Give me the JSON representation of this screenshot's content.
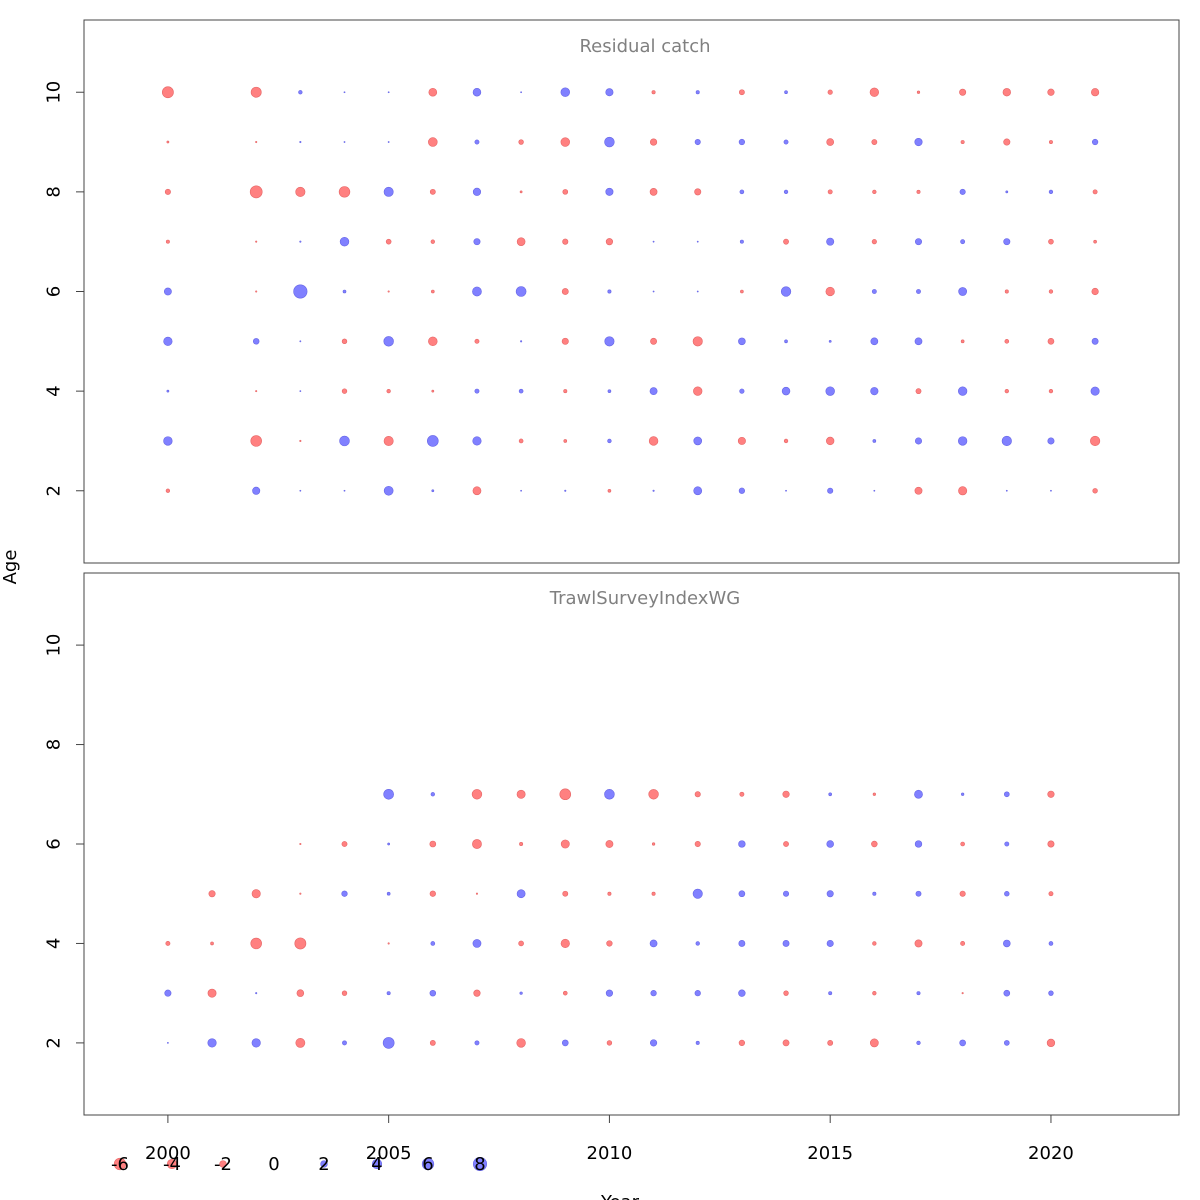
{
  "chart_data": {
    "type": "scatter",
    "subtype": "bubble",
    "xlabel": "Year",
    "ylabel": "Age",
    "x_ticks": [
      2000,
      2005,
      2010,
      2015,
      2020
    ],
    "y_ticks": [
      2,
      4,
      6,
      8,
      10
    ],
    "xlim": [
      1998.1,
      2022.9
    ],
    "ylim": [
      0.55,
      11.45
    ],
    "colors": {
      "positive": "#8080ff",
      "negative": "#ff8080",
      "positive_stroke": "#6666e6",
      "negative_stroke": "#e66666"
    },
    "legend": {
      "placement": "bottom-left",
      "values": [
        -6,
        -4,
        -2,
        0,
        2,
        4,
        6,
        8
      ],
      "labels": [
        "-6",
        "-4",
        "-2",
        "0",
        "2",
        "4",
        "6",
        "8"
      ]
    },
    "panels": [
      {
        "title": "Residual catch",
        "years": [
          2000,
          2002,
          2003,
          2004,
          2005,
          2006,
          2007,
          2008,
          2009,
          2010,
          2011,
          2012,
          2013,
          2014,
          2015,
          2016,
          2017,
          2018,
          2019,
          2020,
          2021
        ],
        "ages": [
          2,
          3,
          4,
          5,
          6,
          7,
          8,
          9,
          10
        ],
        "residuals": [
          [
            -0.6,
            3.3,
            0.2,
            3.2,
            2.3,
            -0.5,
            -1.3,
            -0.2,
            -5.5
          ],
          [
            2.4,
            -5.2,
            -0.1,
            1.5,
            -0.1,
            -0.1,
            -6.4,
            -0.1,
            -4.6
          ],
          [
            0.0,
            -0.1,
            0.0,
            0.0,
            8.0,
            0.1,
            -3.9,
            0.1,
            0.6
          ],
          [
            0.0,
            4.3,
            -1.0,
            -1.0,
            0.4,
            3.4,
            -5.1,
            0.0,
            0.0
          ],
          [
            3.6,
            -3.8,
            -0.6,
            4.2,
            -0.1,
            -1.1,
            3.8,
            0.0,
            0.0
          ],
          [
            0.2,
            5.3,
            -0.2,
            -3.4,
            -0.4,
            -0.6,
            -1.2,
            -3.5,
            -2.8
          ],
          [
            -2.9,
            3.2,
            0.8,
            -0.8,
            3.6,
            1.8,
            2.5,
            0.8,
            2.7
          ],
          [
            0.0,
            -0.7,
            0.7,
            0.1,
            4.4,
            -2.8,
            -0.2,
            -1.0,
            0.0
          ],
          [
            0.1,
            -0.4,
            -0.5,
            -1.8,
            -1.7,
            -1.3,
            -1.1,
            -3.4,
            3.4
          ],
          [
            -0.4,
            0.6,
            0.4,
            3.9,
            0.5,
            -1.9,
            2.4,
            4.2,
            2.4
          ],
          [
            0.1,
            -3.4,
            2.3,
            -1.7,
            0.0,
            0.0,
            -2.2,
            -1.9,
            -0.5
          ],
          [
            2.9,
            2.8,
            -3.3,
            -3.9,
            0.0,
            0.0,
            -1.8,
            1.3,
            0.5
          ],
          [
            1.4,
            -2.4,
            0.9,
            2.1,
            -0.4,
            0.5,
            0.7,
            1.4,
            -1.2
          ],
          [
            0.0,
            -0.6,
            2.7,
            0.4,
            4.1,
            -1.2,
            0.6,
            0.8,
            0.4
          ],
          [
            1.3,
            -2.6,
            3.4,
            0.2,
            -3.3,
            2.4,
            -0.8,
            -2.2,
            -0.9
          ],
          [
            0.0,
            0.4,
            2.5,
            2.2,
            0.8,
            -0.9,
            -0.6,
            -1.2,
            -3.3
          ],
          [
            -2.3,
            1.8,
            -1.2,
            2.2,
            0.8,
            1.8,
            -0.5,
            2.5,
            -0.3
          ],
          [
            -3.1,
            3.3,
            3.3,
            -0.4,
            2.9,
            0.8,
            1.3,
            -0.5,
            -1.8
          ],
          [
            0.0,
            4.0,
            -0.6,
            -0.7,
            -0.5,
            1.8,
            0.2,
            -1.8,
            -2.6
          ],
          [
            0.0,
            1.8,
            -0.6,
            -1.6,
            -0.6,
            -1.1,
            0.6,
            -0.5,
            -1.9
          ],
          [
            -1.0,
            -4.0,
            3.1,
            1.7,
            -1.9,
            -0.4,
            -0.8,
            1.4,
            -2.5
          ]
        ]
      },
      {
        "title": "TrawlSurveyIndexWG",
        "years": [
          2000,
          2001,
          2002,
          2003,
          2004,
          2005,
          2006,
          2007,
          2008,
          2009,
          2010,
          2011,
          2012,
          2013,
          2014,
          2015,
          2016,
          2017,
          2018,
          2019,
          2020
        ],
        "ages": [
          2,
          3,
          4,
          5,
          6,
          7
        ],
        "residuals": [
          [
            0.0,
            1.8,
            -0.8,
            null,
            null,
            null
          ],
          [
            3.2,
            -3.0,
            -0.4,
            -1.8,
            null,
            null
          ],
          [
            3.2,
            0.1,
            -5.2,
            -3.1,
            null,
            null
          ],
          [
            -3.7,
            -2.1,
            -5.5,
            -0.1,
            -0.1,
            null
          ],
          [
            0.8,
            -1.0,
            null,
            1.4,
            -1.2,
            null
          ],
          [
            5.4,
            0.5,
            -0.1,
            0.4,
            0.2,
            4.4
          ],
          [
            -1.2,
            1.5,
            0.7,
            -1.4,
            -1.6,
            0.6
          ],
          [
            0.8,
            -1.9,
            2.9,
            -0.1,
            -3.7,
            -4.2
          ],
          [
            -3.4,
            0.3,
            -1.1,
            2.9,
            -0.5,
            -3.0
          ],
          [
            1.6,
            -0.7,
            -3.2,
            -1.2,
            -3.0,
            -5.3
          ],
          [
            -1.0,
            1.9,
            -1.4,
            -0.5,
            -2.3,
            4.3
          ],
          [
            1.9,
            1.4,
            2.2,
            -0.5,
            -0.3,
            -4.2
          ],
          [
            0.5,
            1.4,
            0.6,
            3.9,
            -1.3,
            -1.3
          ],
          [
            -1.4,
            2.0,
            1.7,
            1.6,
            2.0,
            -0.8
          ],
          [
            -1.7,
            -1.0,
            1.7,
            1.3,
            -1.2,
            -1.9
          ],
          [
            -1.2,
            0.5,
            1.8,
            1.8,
            2.1,
            0.4
          ],
          [
            -2.9,
            -0.6,
            -0.6,
            0.5,
            -1.5,
            -0.3
          ],
          [
            0.6,
            0.5,
            -2.3,
            1.2,
            2.0,
            2.9
          ],
          [
            1.6,
            -0.1,
            -0.8,
            -1.3,
            -0.7,
            0.3
          ],
          [
            1.1,
            1.6,
            2.1,
            1.0,
            0.8,
            1.1
          ],
          [
            -2.6,
            1.0,
            0.7,
            -0.8,
            -1.8,
            -1.9
          ]
        ]
      }
    ]
  }
}
